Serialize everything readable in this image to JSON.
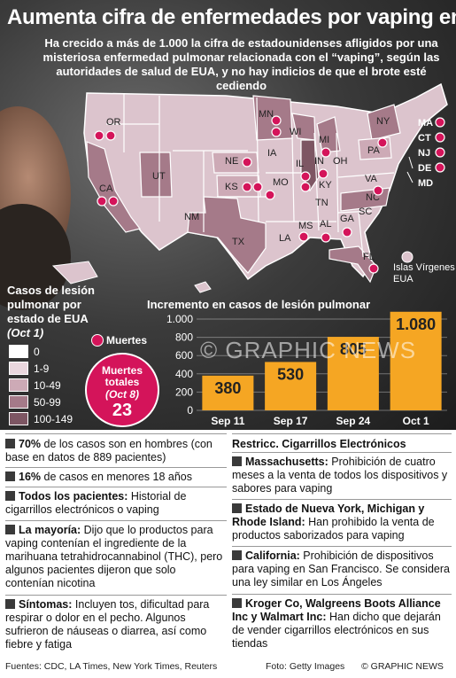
{
  "title": "Aumenta cifra de enfermedades por vaping en EUA",
  "subtitle": "Ha crecido a más de 1.000 la cifra de estadounidenses afligidos por una misteriosa enfermedad pulmonar relacionada con el “vaping”, según las autoridades de salud de EUA, y no hay indicios de que el brote esté cediendo",
  "legend": {
    "title": "Casos de lesión pulmonar por estado de EUA",
    "subtitle": "(Oct 1)",
    "items": [
      {
        "label": "0",
        "color": "#ffffff"
      },
      {
        "label": "1-9",
        "color": "#ead7de"
      },
      {
        "label": "10-49",
        "color": "#cdaab6"
      },
      {
        "label": "50-99",
        "color": "#a57a89"
      },
      {
        "label": "100-149",
        "color": "#7d5663"
      }
    ],
    "deaths_label": "Muertes"
  },
  "total_deaths": {
    "label": "Muertes totales",
    "date": "(Oct 8)",
    "value": "23"
  },
  "map": {
    "states": [
      "OR",
      "CA",
      "UT",
      "NM",
      "TX",
      "NE",
      "KS",
      "MN",
      "IA",
      "MO",
      "WI",
      "IL",
      "MI",
      "IN",
      "OH",
      "KY",
      "TN",
      "MS",
      "AL",
      "GA",
      "FL",
      "LA",
      "SC",
      "NC",
      "VA",
      "PA",
      "NY"
    ],
    "ne_states": [
      "MA",
      "CT",
      "NJ",
      "DE",
      "MD"
    ],
    "islands_label": "Islas Vírgenes EUA"
  },
  "chart_data": {
    "type": "bar",
    "title": "Incremento en casos de lesión pulmonar",
    "categories": [
      "Sep 11",
      "Sep 17",
      "Sep 24",
      "Oct 1"
    ],
    "values": [
      380,
      530,
      805,
      1080
    ],
    "value_labels": [
      "380",
      "530",
      "805",
      "1.080"
    ],
    "ylim": [
      0,
      1000
    ],
    "yticks": [
      0,
      200,
      400,
      600,
      800,
      1000
    ],
    "ytick_labels": [
      "0",
      "200",
      "400",
      "600",
      "800",
      "1.000"
    ],
    "bar_color": "#f5a623"
  },
  "watermark": "© GRAPHIC NEWS",
  "facts": [
    {
      "bold": "70%",
      "text": " de los casos son en hombres (con base en datos de 889 pacientes)"
    },
    {
      "bold": "16%",
      "text": " de casos en menores 18 años"
    },
    {
      "bold": "Todos los pacientes:",
      "text": " Historial de cigarrillos electrónicos o vaping"
    },
    {
      "bold": "La mayoría:",
      "text": " Dijo que lo productos para vaping contenían el ingrediente de la marihuana tetrahidrocannabinol (THC), pero algunos pacientes dijeron que solo contenían nicotina"
    },
    {
      "bold": "Síntomas:",
      "text": " Incluyen tos, dificultad para respirar o dolor en el pecho. Algunos sufrieron de náuseas o diarrea, así como fiebre y fatiga"
    }
  ],
  "restrictions_title": "Restricc. Cigarrillos Electrónicos",
  "restrictions": [
    {
      "bold": "Massachusetts:",
      "text": " Prohibición de cuatro meses a la venta de todos los dispositivos y sabores para vaping"
    },
    {
      "bold": "Estado de Nueva York, Michigan y Rhode Island:",
      "text": " Han prohibido la venta de productos saborizados para vaping"
    },
    {
      "bold": "California:",
      "text": " Prohibición de dispositivos para vaping en San Francisco. Se considera una ley similar en Los Ángeles"
    },
    {
      "bold": "Kroger Co, Walgreens Boots Alliance Inc y Walmart Inc:",
      "text": " Han dicho que dejarán de vender cigarrillos electrónicos en sus tiendas"
    }
  ],
  "footer": {
    "sources": "Fuentes: CDC, LA Times, New York Times, Reuters",
    "photo": "Foto: Getty Images",
    "credit": "© GRAPHIC NEWS"
  }
}
